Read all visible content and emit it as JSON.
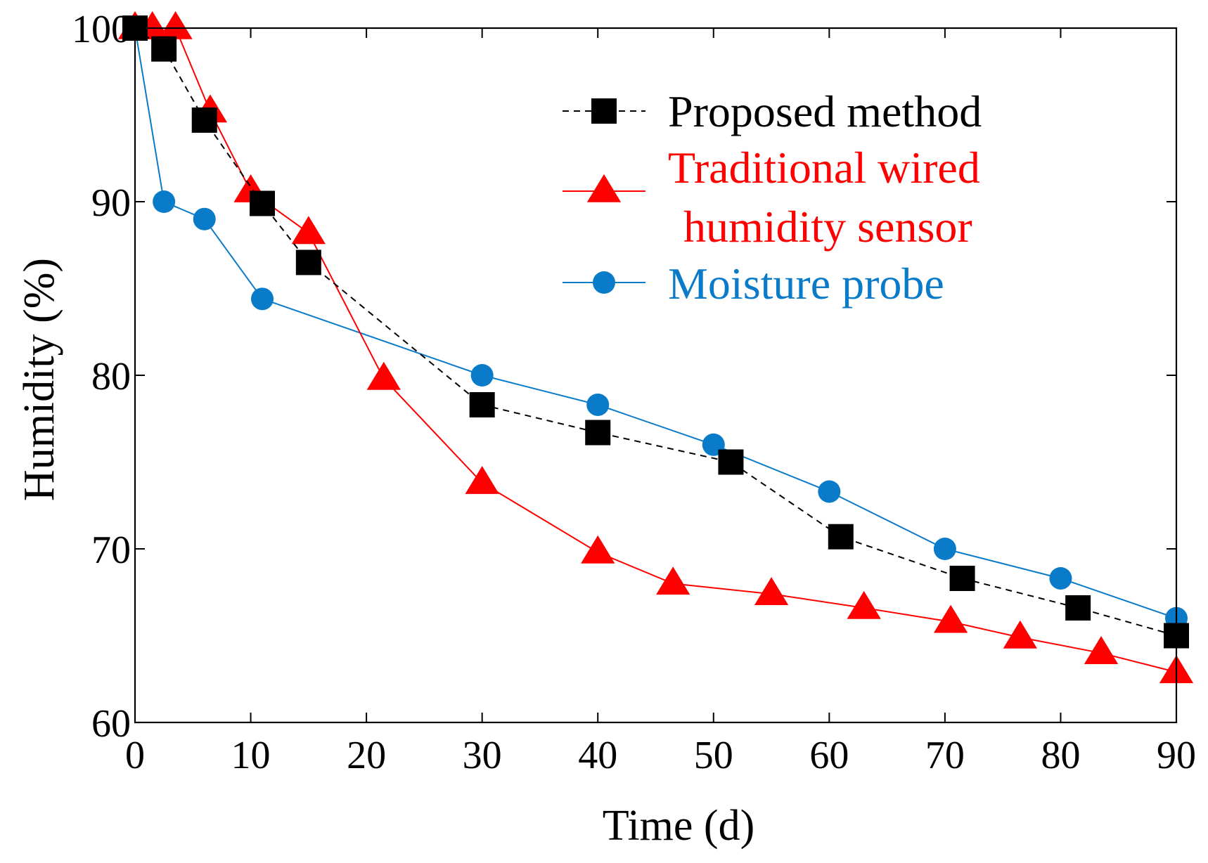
{
  "chart_data": {
    "type": "line",
    "title": "",
    "xlabel": "Time (d)",
    "ylabel": "Humidity (%)",
    "xlim": [
      0,
      90
    ],
    "ylim": [
      60,
      100
    ],
    "xticks": [
      0,
      10,
      20,
      30,
      40,
      50,
      60,
      70,
      80,
      90
    ],
    "yticks": [
      60,
      70,
      80,
      90,
      100
    ],
    "grid": false,
    "legend_position": "top-right",
    "legend_lines": [
      [
        "Proposed method"
      ],
      [
        "Traditional wired",
        "humidity sensor"
      ],
      [
        "Moisture probe"
      ]
    ],
    "series": [
      {
        "name": "Proposed method",
        "color": "#000000",
        "marker": "square",
        "line": "dashed",
        "x": [
          0,
          2.5,
          6,
          11,
          15,
          30,
          40,
          51.5,
          61,
          71.5,
          81.5,
          90
        ],
        "y": [
          100,
          98.8,
          94.7,
          89.9,
          86.5,
          78.3,
          76.7,
          75.0,
          70.7,
          68.3,
          66.6,
          65.0
        ]
      },
      {
        "name": "Traditional wired humidity sensor",
        "color": "#ff0000",
        "marker": "triangle",
        "line": "solid",
        "x": [
          0,
          1.5,
          3.5,
          6.5,
          10,
          15,
          21.5,
          30,
          40,
          46.5,
          55,
          63,
          70.5,
          76.5,
          83.5,
          90
        ],
        "y": [
          100,
          100,
          100,
          95.2,
          90.6,
          88.2,
          79.8,
          73.8,
          69.8,
          68.0,
          67.4,
          66.6,
          65.8,
          64.9,
          64.0,
          62.9
        ]
      },
      {
        "name": "Moisture probe",
        "color": "#0a7bc8",
        "marker": "circle",
        "line": "solid",
        "x": [
          0,
          2.5,
          6,
          11,
          30,
          40,
          50,
          60,
          70,
          80,
          90
        ],
        "y": [
          100,
          90.0,
          89.0,
          84.4,
          80.0,
          78.3,
          76.0,
          73.3,
          70.0,
          68.3,
          66.0
        ]
      }
    ]
  }
}
